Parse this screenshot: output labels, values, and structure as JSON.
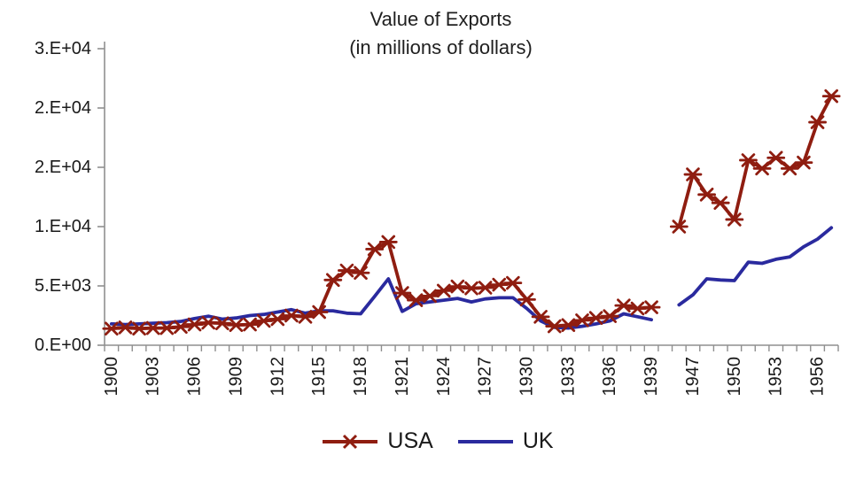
{
  "chart_data": {
    "type": "line",
    "title": "Value of Exports",
    "subtitle": "(in millions of dollars)",
    "grid": "off",
    "legend_position": "bottom",
    "y_axis": {
      "min": 0,
      "max": 25000,
      "tick_values": [
        0,
        5000,
        10000,
        15000,
        20000,
        25000
      ],
      "tick_labels": [
        "0.E+00",
        "5.E+03",
        "1.E+04",
        "2.E+04",
        "2.E+04",
        "3.E+04"
      ]
    },
    "x_axis": {
      "labeled_years": [
        "1900",
        "1903",
        "1906",
        "1909",
        "1912",
        "1915",
        "1918",
        "1921",
        "1924",
        "1927",
        "1930",
        "1933",
        "1936",
        "1939",
        "1947",
        "1950",
        "1953",
        "1956"
      ],
      "gap_after_year": 1939,
      "resume_year": 1946,
      "label_rotation_degrees": -90
    },
    "series": [
      {
        "name": "USA",
        "color": "#8f1d10",
        "marker": "asterisk",
        "points": [
          [
            1900,
            1400
          ],
          [
            1901,
            1500
          ],
          [
            1902,
            1400
          ],
          [
            1903,
            1450
          ],
          [
            1904,
            1450
          ],
          [
            1905,
            1550
          ],
          [
            1906,
            1750
          ],
          [
            1907,
            1900
          ],
          [
            1908,
            1850
          ],
          [
            1909,
            1700
          ],
          [
            1910,
            1750
          ],
          [
            1911,
            2050
          ],
          [
            1912,
            2200
          ],
          [
            1913,
            2500
          ],
          [
            1914,
            2400
          ],
          [
            1915,
            2800
          ],
          [
            1916,
            5500
          ],
          [
            1917,
            6300
          ],
          [
            1918,
            6100
          ],
          [
            1919,
            8100
          ],
          [
            1920,
            8700
          ],
          [
            1921,
            4400
          ],
          [
            1922,
            3800
          ],
          [
            1923,
            4150
          ],
          [
            1924,
            4600
          ],
          [
            1925,
            4950
          ],
          [
            1926,
            4800
          ],
          [
            1927,
            4850
          ],
          [
            1928,
            5100
          ],
          [
            1929,
            5250
          ],
          [
            1930,
            3850
          ],
          [
            1931,
            2400
          ],
          [
            1932,
            1600
          ],
          [
            1933,
            1700
          ],
          [
            1934,
            2100
          ],
          [
            1935,
            2300
          ],
          [
            1936,
            2450
          ],
          [
            1937,
            3350
          ],
          [
            1938,
            3100
          ],
          [
            1939,
            3200
          ],
          [
            1946,
            10000
          ],
          [
            1947,
            14400
          ],
          [
            1948,
            12700
          ],
          [
            1949,
            12000
          ],
          [
            1950,
            10600
          ],
          [
            1951,
            15600
          ],
          [
            1952,
            14900
          ],
          [
            1953,
            15800
          ],
          [
            1954,
            14900
          ],
          [
            1955,
            15400
          ],
          [
            1956,
            18800
          ],
          [
            1957,
            21000
          ]
        ]
      },
      {
        "name": "UK",
        "color": "#2a2a9e",
        "marker": "none",
        "points": [
          [
            1900,
            1800
          ],
          [
            1901,
            1750
          ],
          [
            1902,
            1800
          ],
          [
            1903,
            1850
          ],
          [
            1904,
            1900
          ],
          [
            1905,
            2000
          ],
          [
            1906,
            2250
          ],
          [
            1907,
            2450
          ],
          [
            1908,
            2200
          ],
          [
            1909,
            2300
          ],
          [
            1910,
            2500
          ],
          [
            1911,
            2600
          ],
          [
            1912,
            2800
          ],
          [
            1913,
            3000
          ],
          [
            1914,
            2700
          ],
          [
            1915,
            2900
          ],
          [
            1916,
            2900
          ],
          [
            1917,
            2700
          ],
          [
            1918,
            2650
          ],
          [
            1919,
            4100
          ],
          [
            1920,
            5600
          ],
          [
            1921,
            2850
          ],
          [
            1922,
            3500
          ],
          [
            1923,
            3650
          ],
          [
            1924,
            3800
          ],
          [
            1925,
            3950
          ],
          [
            1926,
            3650
          ],
          [
            1927,
            3900
          ],
          [
            1928,
            4000
          ],
          [
            1929,
            4000
          ],
          [
            1930,
            3100
          ],
          [
            1931,
            2050
          ],
          [
            1932,
            1500
          ],
          [
            1933,
            1450
          ],
          [
            1934,
            1600
          ],
          [
            1935,
            1800
          ],
          [
            1936,
            2050
          ],
          [
            1937,
            2650
          ],
          [
            1938,
            2400
          ],
          [
            1939,
            2150
          ],
          [
            1946,
            3400
          ],
          [
            1947,
            4250
          ],
          [
            1948,
            5600
          ],
          [
            1949,
            5500
          ],
          [
            1950,
            5450
          ],
          [
            1951,
            7000
          ],
          [
            1952,
            6900
          ],
          [
            1953,
            7250
          ],
          [
            1954,
            7450
          ],
          [
            1955,
            8300
          ],
          [
            1956,
            8950
          ],
          [
            1957,
            9900
          ]
        ]
      }
    ]
  }
}
